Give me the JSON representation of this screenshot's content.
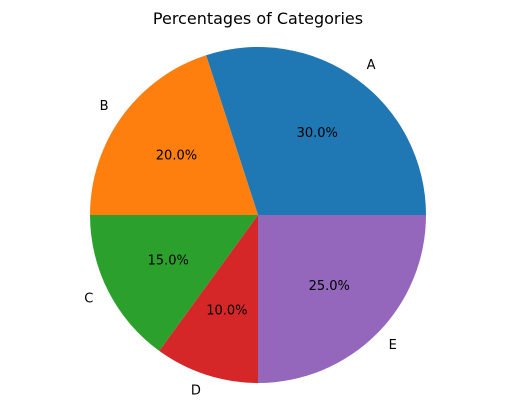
{
  "chart_data": {
    "type": "pie",
    "title": "Percentages of Categories",
    "categories": [
      "A",
      "B",
      "C",
      "D",
      "E"
    ],
    "values": [
      30,
      20,
      15,
      10,
      25
    ],
    "percent_labels": [
      "30.0%",
      "20.0%",
      "15.0%",
      "10.0%",
      "25.0%"
    ],
    "colors": [
      "#1f77b4",
      "#ff7f0e",
      "#2ca02c",
      "#d62728",
      "#9467bd"
    ],
    "start_angle_deg": 0,
    "direction": "counterclockwise",
    "legend": "none"
  }
}
